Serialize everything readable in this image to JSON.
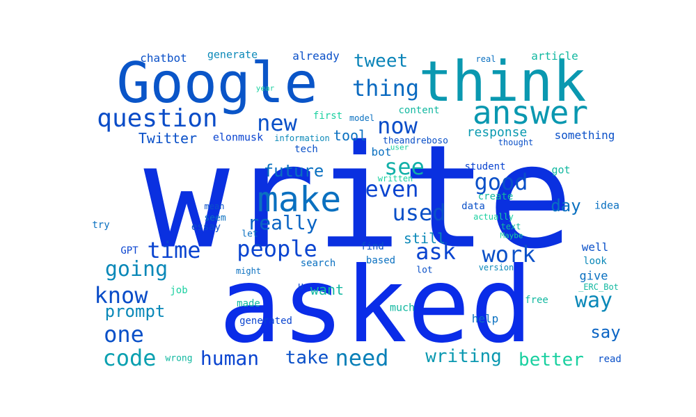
{
  "palette": [
    "#0a2fd6",
    "#0a50c8",
    "#0a6fc0",
    "#0a9ab0",
    "#12b8a0",
    "#1ad0a0",
    "#0a44e0"
  ],
  "words": [
    {
      "text": "write",
      "color": "#0a30e0"
    },
    {
      "text": "asked",
      "color": "#0a2ce8"
    },
    {
      "text": "Google",
      "color": "#0a55c8"
    },
    {
      "text": "think",
      "color": "#0a98b0"
    },
    {
      "text": "answer",
      "color": "#0a98b0"
    },
    {
      "text": "make",
      "color": "#0a70c0"
    },
    {
      "text": "question",
      "color": "#0a4cc8"
    },
    {
      "text": "people",
      "color": "#0a44d0"
    },
    {
      "text": "time",
      "color": "#0a44d0"
    },
    {
      "text": "new",
      "color": "#0a50c8"
    },
    {
      "text": "now",
      "color": "#0a4cc8"
    },
    {
      "text": "thing",
      "color": "#0a6ac0"
    },
    {
      "text": "tweet",
      "color": "#0a84b8"
    },
    {
      "text": "used",
      "color": "#0a50c8"
    },
    {
      "text": "even",
      "color": "#0a44d0"
    },
    {
      "text": "see",
      "color": "#12b0a8"
    },
    {
      "text": "good",
      "color": "#0a50c8"
    },
    {
      "text": "really",
      "color": "#0a64c4"
    },
    {
      "text": "going",
      "color": "#0a88b8"
    },
    {
      "text": "know",
      "color": "#0a4cc8"
    },
    {
      "text": "one",
      "color": "#0a50c8"
    },
    {
      "text": "code",
      "color": "#0aa0b0"
    },
    {
      "text": "human",
      "color": "#0a44d0"
    },
    {
      "text": "take",
      "color": "#0a50c8"
    },
    {
      "text": "need",
      "color": "#0a80b8"
    },
    {
      "text": "work",
      "color": "#0a50c8"
    },
    {
      "text": "ask",
      "color": "#0a44d0"
    },
    {
      "text": "way",
      "color": "#0a88b8"
    },
    {
      "text": "day",
      "color": "#0a70c0"
    },
    {
      "text": "say",
      "color": "#0a64c4"
    },
    {
      "text": "better",
      "color": "#1ad0a0"
    },
    {
      "text": "writing",
      "color": "#0a98b0"
    },
    {
      "text": "prompt",
      "color": "#0a88b8"
    },
    {
      "text": "future",
      "color": "#0a70c0"
    },
    {
      "text": "still",
      "color": "#0a88b8"
    },
    {
      "text": "response",
      "color": "#0a9ab0"
    },
    {
      "text": "tool",
      "color": "#0a70c0"
    },
    {
      "text": "Twitter",
      "color": "#0a50c8"
    },
    {
      "text": "chatbot",
      "color": "#0a50c8"
    },
    {
      "text": "generate",
      "color": "#0a88b8"
    },
    {
      "text": "already",
      "color": "#0a50c8"
    },
    {
      "text": "article",
      "color": "#12b8a0"
    },
    {
      "text": "real",
      "color": "#0a70c0"
    },
    {
      "text": "year",
      "color": "#1ad0a0"
    },
    {
      "text": "model",
      "color": "#0a70c0"
    },
    {
      "text": "first",
      "color": "#1ad0a0"
    },
    {
      "text": "content",
      "color": "#12b8a0"
    },
    {
      "text": "elonmusk",
      "color": "#0a44d0"
    },
    {
      "text": "information",
      "color": "#0a88b8"
    },
    {
      "text": "theandreboso",
      "color": "#0a50c8"
    },
    {
      "text": "user",
      "color": "#1ad0a0"
    },
    {
      "text": "thought",
      "color": "#0a50c8"
    },
    {
      "text": "something",
      "color": "#0a50c8"
    },
    {
      "text": "tech",
      "color": "#0a50c8"
    },
    {
      "text": "bot",
      "color": "#0a70c0"
    },
    {
      "text": "student",
      "color": "#0a44d0"
    },
    {
      "text": "got",
      "color": "#12b8a0"
    },
    {
      "text": "written",
      "color": "#1ad0a0"
    },
    {
      "text": "create",
      "color": "#12b8a0"
    },
    {
      "text": "data",
      "color": "#0a50c8"
    },
    {
      "text": "actually",
      "color": "#1ad0a0"
    },
    {
      "text": "idea",
      "color": "#0a70c0"
    },
    {
      "text": "text",
      "color": "#12b8a0"
    },
    {
      "text": "Maybe",
      "color": "#1ad0a0"
    },
    {
      "text": "well",
      "color": "#0a50c8"
    },
    {
      "text": "look",
      "color": "#0a88b8"
    },
    {
      "text": "give",
      "color": "#0a70c0"
    },
    {
      "text": "_ERC_Bot",
      "color": "#12b8a0"
    },
    {
      "text": "free",
      "color": "#12b8a0"
    },
    {
      "text": "help",
      "color": "#0a70c0"
    },
    {
      "text": "read",
      "color": "#0a50c8"
    },
    {
      "text": "version",
      "color": "#0a88b8"
    },
    {
      "text": "lot",
      "color": "#0a50c8"
    },
    {
      "text": "much",
      "color": "#12b8a0"
    },
    {
      "text": "find",
      "color": "#0a50c8"
    },
    {
      "text": "based",
      "color": "#0a70c0"
    },
    {
      "text": "search",
      "color": "#0a70c0"
    },
    {
      "text": "u",
      "color": "#0a44d0"
    },
    {
      "text": "want",
      "color": "#12b8a0"
    },
    {
      "text": "might",
      "color": "#0a70c0"
    },
    {
      "text": "made",
      "color": "#12b8a0"
    },
    {
      "text": "generated",
      "color": "#0a44d0"
    },
    {
      "text": "wrong",
      "color": "#12b8a0"
    },
    {
      "text": "job",
      "color": "#1ad0a0"
    },
    {
      "text": "GPT",
      "color": "#0a44d0"
    },
    {
      "text": "try",
      "color": "#0a70c0"
    },
    {
      "text": "mean",
      "color": "#0a50c8"
    },
    {
      "text": "seem",
      "color": "#0a70c0"
    },
    {
      "text": "essay",
      "color": "#0a50c8"
    },
    {
      "text": "let",
      "color": "#0a70c0"
    }
  ]
}
